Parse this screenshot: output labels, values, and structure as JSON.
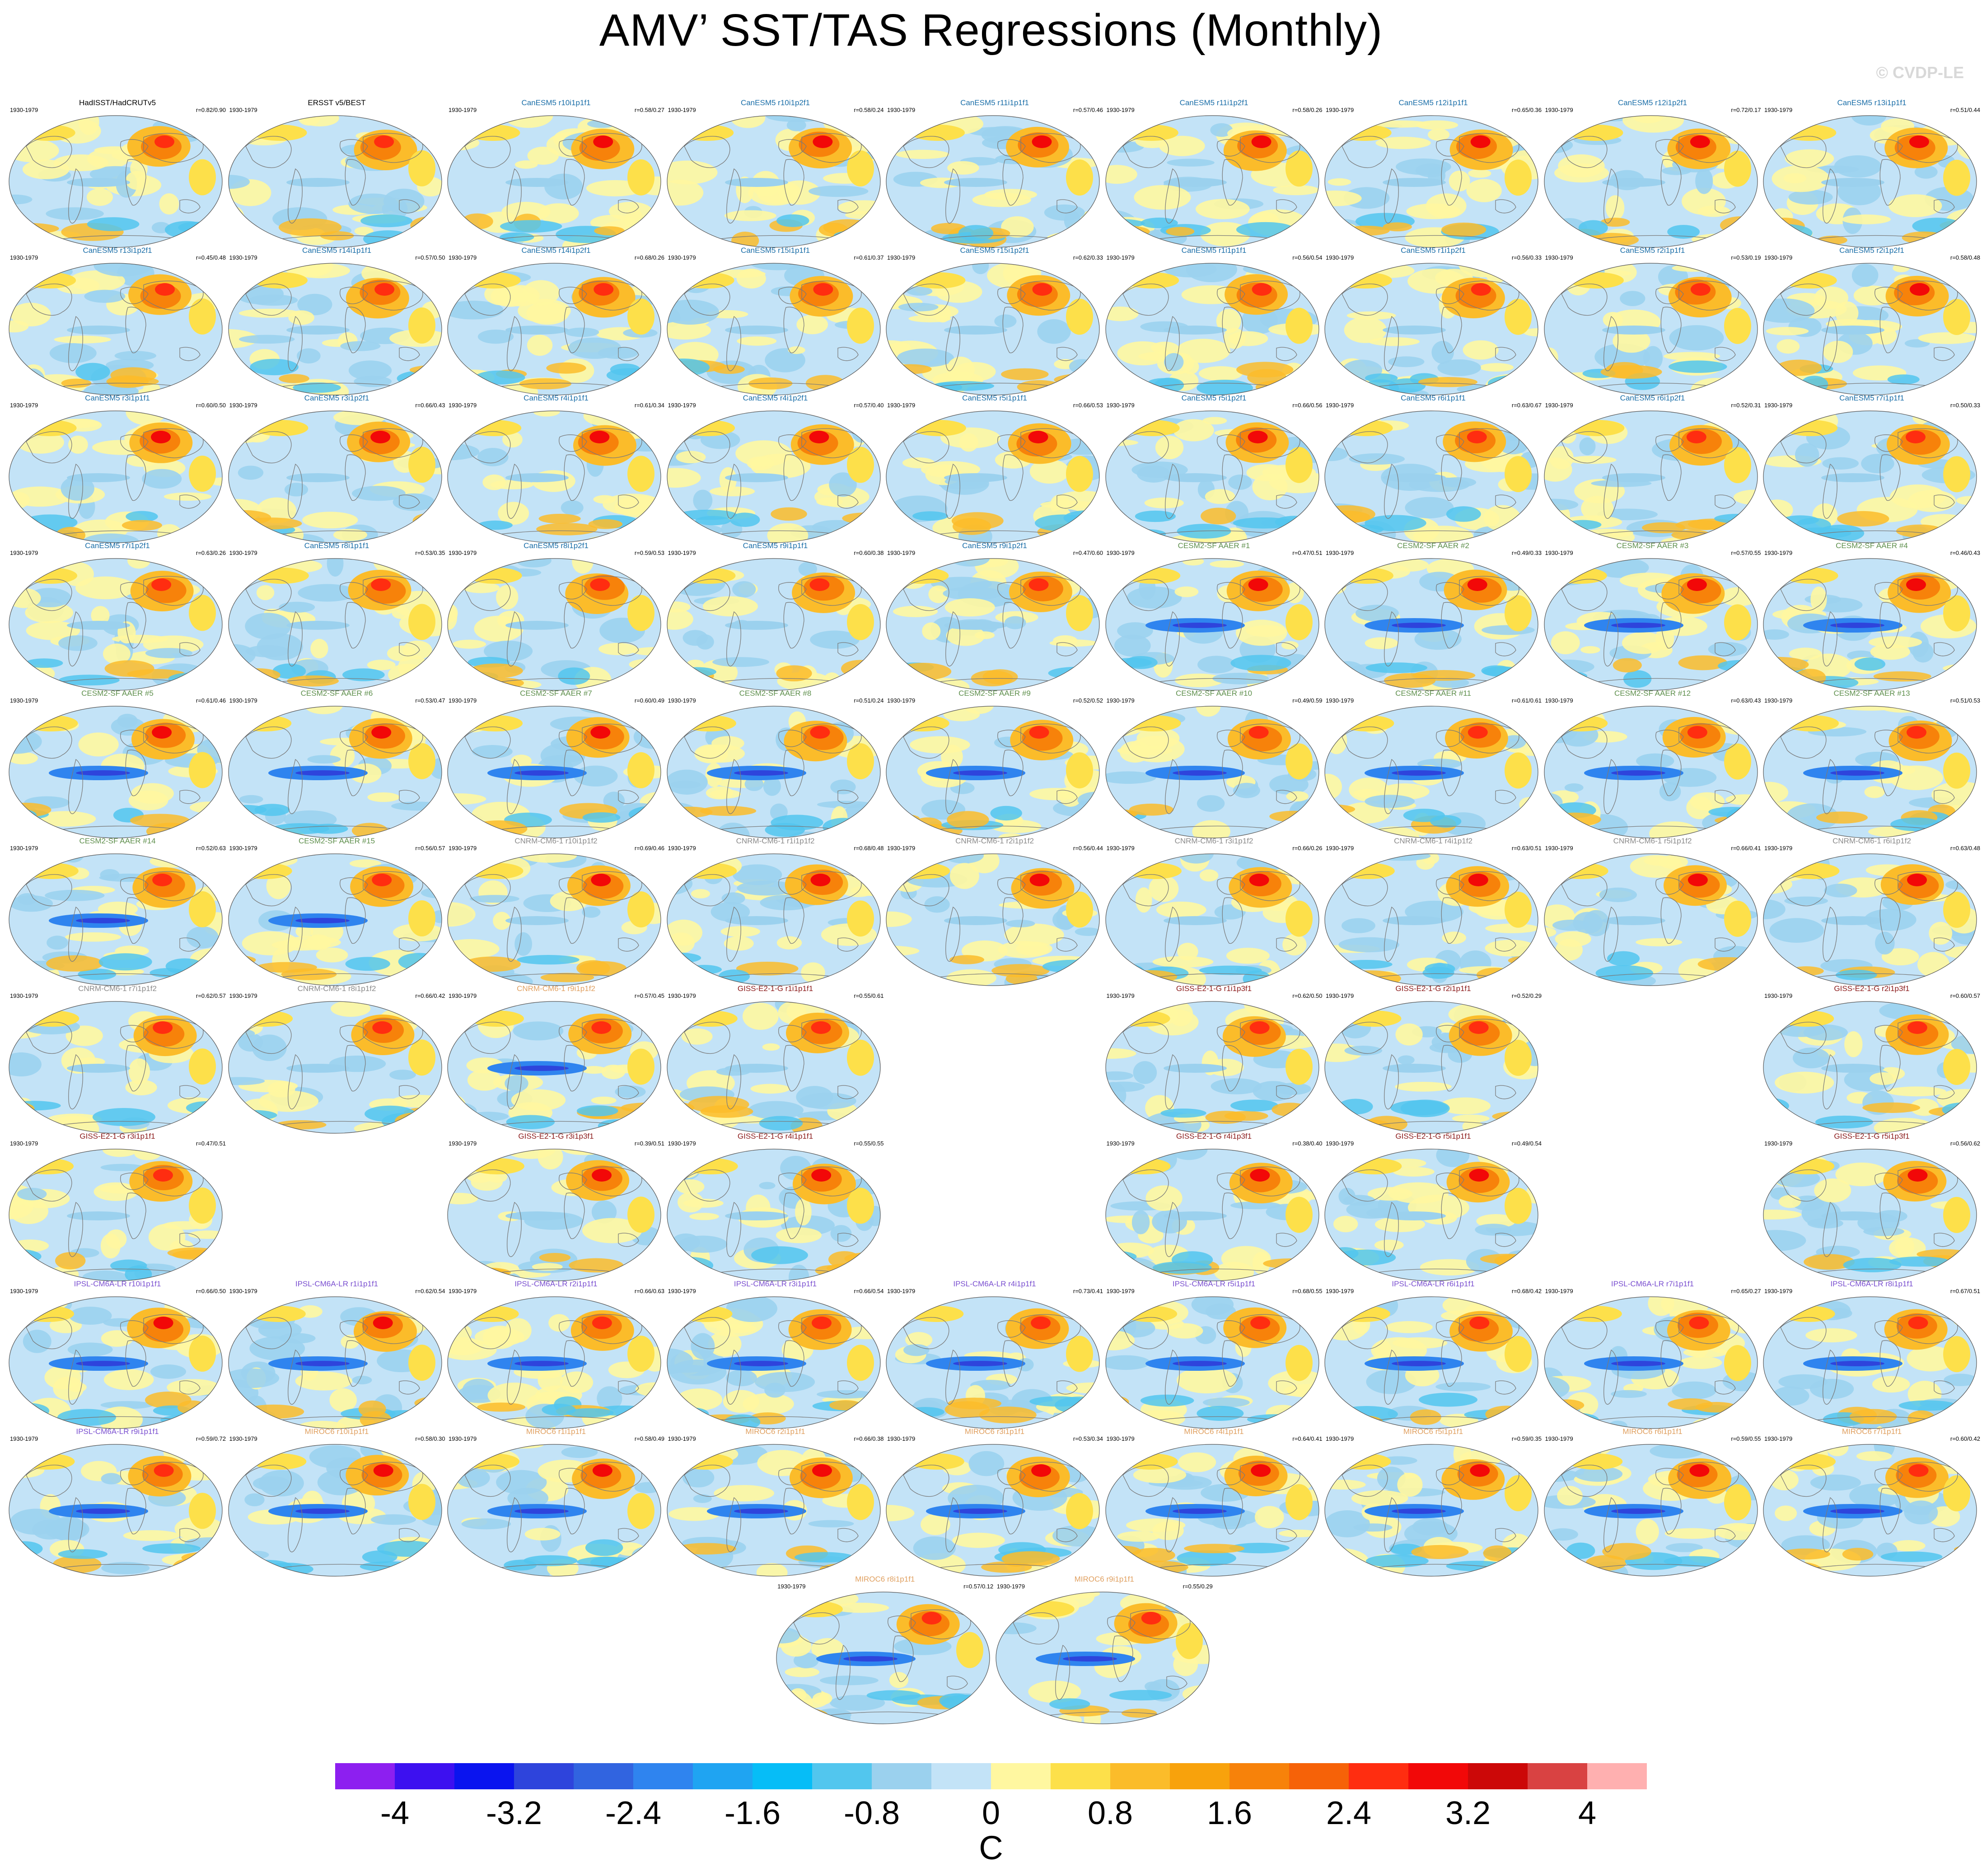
{
  "title": "AMV’ SST/TAS Regressions (Monthly)",
  "watermark": "© CVDP-LE",
  "colors": {
    "canesm5": "#1a6ea8",
    "cesm2": "#5e8f4c",
    "cnrm": "#8a8a8a",
    "giss": "#8b1a1a",
    "ipsl": "#7a4fd0",
    "miroc": "#e0a060",
    "obs": "#000000"
  },
  "colorbar": {
    "unit": "C",
    "tick_labels": [
      "-4",
      "-3.2",
      "-2.4",
      "-1.6",
      "-0.8",
      "0",
      "0.8",
      "1.6",
      "2.4",
      "3.2",
      "4"
    ],
    "colors": [
      "#8d1ff0",
      "#3d10f0",
      "#0a14ef",
      "#2e44dc",
      "#3164e0",
      "#2f84ef",
      "#1fa4f2",
      "#06bdf7",
      "#52c6ee",
      "#9bd1ee",
      "#c3e3f7",
      "#fff7a0",
      "#fde04a",
      "#fbbc2a",
      "#f8a20c",
      "#f7820a",
      "#f66208",
      "#ff2d10",
      "#f20808",
      "#cc0808",
      "#d94242",
      "#ffb0b0"
    ]
  },
  "chart_data": {
    "type": "heatmap",
    "title": "AMV’ SST/TAS Regressions (Monthly)",
    "colorbar_label": "C",
    "colorbar_range": [
      -4,
      4
    ],
    "panels": [
      {
        "row": 0,
        "col": 0,
        "title": "HadISST/HadCRUTv5",
        "group": "obs",
        "period": "1930-1979",
        "corr": "r=0.82/0.90"
      },
      {
        "row": 0,
        "col": 1,
        "title": "ERSST v5/BEST",
        "group": "obs",
        "period": "1930-1979",
        "corr": ""
      },
      {
        "row": 0,
        "col": 2,
        "title": "CanESM5 r10i1p1f1",
        "group": "canesm5",
        "period": "1930-1979",
        "corr": "r=0.58/0.27"
      },
      {
        "row": 0,
        "col": 3,
        "title": "CanESM5 r10i1p2f1",
        "group": "canesm5",
        "period": "1930-1979",
        "corr": "r=0.58/0.24"
      },
      {
        "row": 0,
        "col": 4,
        "title": "CanESM5 r11i1p1f1",
        "group": "canesm5",
        "period": "1930-1979",
        "corr": "r=0.57/0.46"
      },
      {
        "row": 0,
        "col": 5,
        "title": "CanESM5 r11i1p2f1",
        "group": "canesm5",
        "period": "1930-1979",
        "corr": "r=0.58/0.26"
      },
      {
        "row": 0,
        "col": 6,
        "title": "CanESM5 r12i1p1f1",
        "group": "canesm5",
        "period": "1930-1979",
        "corr": "r=0.65/0.36"
      },
      {
        "row": 0,
        "col": 7,
        "title": "CanESM5 r12i1p2f1",
        "group": "canesm5",
        "period": "1930-1979",
        "corr": "r=0.72/0.17"
      },
      {
        "row": 0,
        "col": 8,
        "title": "CanESM5 r13i1p1f1",
        "group": "canesm5",
        "period": "1930-1979",
        "corr": "r=0.51/0.44"
      },
      {
        "row": 1,
        "col": 0,
        "title": "CanESM5 r13i1p2f1",
        "group": "canesm5",
        "period": "1930-1979",
        "corr": "r=0.45/0.48"
      },
      {
        "row": 1,
        "col": 1,
        "title": "CanESM5 r14i1p1f1",
        "group": "canesm5",
        "period": "1930-1979",
        "corr": "r=0.57/0.50"
      },
      {
        "row": 1,
        "col": 2,
        "title": "CanESM5 r14i1p2f1",
        "group": "canesm5",
        "period": "1930-1979",
        "corr": "r=0.68/0.26"
      },
      {
        "row": 1,
        "col": 3,
        "title": "CanESM5 r15i1p1f1",
        "group": "canesm5",
        "period": "1930-1979",
        "corr": "r=0.61/0.37"
      },
      {
        "row": 1,
        "col": 4,
        "title": "CanESM5 r15i1p2f1",
        "group": "canesm5",
        "period": "1930-1979",
        "corr": "r=0.62/0.33"
      },
      {
        "row": 1,
        "col": 5,
        "title": "CanESM5 r1i1p1f1",
        "group": "canesm5",
        "period": "1930-1979",
        "corr": "r=0.56/0.54"
      },
      {
        "row": 1,
        "col": 6,
        "title": "CanESM5 r1i1p2f1",
        "group": "canesm5",
        "period": "1930-1979",
        "corr": "r=0.56/0.33"
      },
      {
        "row": 1,
        "col": 7,
        "title": "CanESM5 r2i1p1f1",
        "group": "canesm5",
        "period": "1930-1979",
        "corr": "r=0.53/0.19"
      },
      {
        "row": 1,
        "col": 8,
        "title": "CanESM5 r2i1p2f1",
        "group": "canesm5",
        "period": "1930-1979",
        "corr": "r=0.58/0.48"
      },
      {
        "row": 2,
        "col": 0,
        "title": "CanESM5 r3i1p1f1",
        "group": "canesm5",
        "period": "1930-1979",
        "corr": "r=0.60/0.50"
      },
      {
        "row": 2,
        "col": 1,
        "title": "CanESM5 r3i1p2f1",
        "group": "canesm5",
        "period": "1930-1979",
        "corr": "r=0.66/0.43"
      },
      {
        "row": 2,
        "col": 2,
        "title": "CanESM5 r4i1p1f1",
        "group": "canesm5",
        "period": "1930-1979",
        "corr": "r=0.61/0.34"
      },
      {
        "row": 2,
        "col": 3,
        "title": "CanESM5 r4i1p2f1",
        "group": "canesm5",
        "period": "1930-1979",
        "corr": "r=0.57/0.40"
      },
      {
        "row": 2,
        "col": 4,
        "title": "CanESM5 r5i1p1f1",
        "group": "canesm5",
        "period": "1930-1979",
        "corr": "r=0.66/0.53"
      },
      {
        "row": 2,
        "col": 5,
        "title": "CanESM5 r5i1p2f1",
        "group": "canesm5",
        "period": "1930-1979",
        "corr": "r=0.66/0.56"
      },
      {
        "row": 2,
        "col": 6,
        "title": "CanESM5 r6i1p1f1",
        "group": "canesm5",
        "period": "1930-1979",
        "corr": "r=0.63/0.67"
      },
      {
        "row": 2,
        "col": 7,
        "title": "CanESM5 r6i1p2f1",
        "group": "canesm5",
        "period": "1930-1979",
        "corr": "r=0.52/0.31"
      },
      {
        "row": 2,
        "col": 8,
        "title": "CanESM5 r7i1p1f1",
        "group": "canesm5",
        "period": "1930-1979",
        "corr": "r=0.50/0.33"
      },
      {
        "row": 3,
        "col": 0,
        "title": "CanESM5 r7i1p2f1",
        "group": "canesm5",
        "period": "1930-1979",
        "corr": "r=0.63/0.26"
      },
      {
        "row": 3,
        "col": 1,
        "title": "CanESM5 r8i1p1f1",
        "group": "canesm5",
        "period": "1930-1979",
        "corr": "r=0.53/0.35"
      },
      {
        "row": 3,
        "col": 2,
        "title": "CanESM5 r8i1p2f1",
        "group": "canesm5",
        "period": "1930-1979",
        "corr": "r=0.59/0.53"
      },
      {
        "row": 3,
        "col": 3,
        "title": "CanESM5 r9i1p1f1",
        "group": "canesm5",
        "period": "1930-1979",
        "corr": "r=0.60/0.38"
      },
      {
        "row": 3,
        "col": 4,
        "title": "CanESM5 r9i1p2f1",
        "group": "canesm5",
        "period": "1930-1979",
        "corr": "r=0.47/0.60"
      },
      {
        "row": 3,
        "col": 5,
        "title": "CESM2-SF AAER #1",
        "group": "cesm2",
        "period": "1930-1979",
        "corr": "r=0.47/0.51"
      },
      {
        "row": 3,
        "col": 6,
        "title": "CESM2-SF AAER #2",
        "group": "cesm2",
        "period": "1930-1979",
        "corr": "r=0.49/0.33"
      },
      {
        "row": 3,
        "col": 7,
        "title": "CESM2-SF AAER #3",
        "group": "cesm2",
        "period": "1930-1979",
        "corr": "r=0.57/0.55"
      },
      {
        "row": 3,
        "col": 8,
        "title": "CESM2-SF AAER #4",
        "group": "cesm2",
        "period": "1930-1979",
        "corr": "r=0.46/0.43"
      },
      {
        "row": 4,
        "col": 0,
        "title": "CESM2-SF AAER #5",
        "group": "cesm2",
        "period": "1930-1979",
        "corr": "r=0.61/0.46"
      },
      {
        "row": 4,
        "col": 1,
        "title": "CESM2-SF AAER #6",
        "group": "cesm2",
        "period": "1930-1979",
        "corr": "r=0.53/0.47"
      },
      {
        "row": 4,
        "col": 2,
        "title": "CESM2-SF AAER #7",
        "group": "cesm2",
        "period": "1930-1979",
        "corr": "r=0.60/0.49"
      },
      {
        "row": 4,
        "col": 3,
        "title": "CESM2-SF AAER #8",
        "group": "cesm2",
        "period": "1930-1979",
        "corr": "r=0.51/0.24"
      },
      {
        "row": 4,
        "col": 4,
        "title": "CESM2-SF AAER #9",
        "group": "cesm2",
        "period": "1930-1979",
        "corr": "r=0.52/0.52"
      },
      {
        "row": 4,
        "col": 5,
        "title": "CESM2-SF AAER #10",
        "group": "cesm2",
        "period": "1930-1979",
        "corr": "r=0.49/0.59"
      },
      {
        "row": 4,
        "col": 6,
        "title": "CESM2-SF AAER #11",
        "group": "cesm2",
        "period": "1930-1979",
        "corr": "r=0.61/0.61"
      },
      {
        "row": 4,
        "col": 7,
        "title": "CESM2-SF AAER #12",
        "group": "cesm2",
        "period": "1930-1979",
        "corr": "r=0.63/0.43"
      },
      {
        "row": 4,
        "col": 8,
        "title": "CESM2-SF AAER #13",
        "group": "cesm2",
        "period": "1930-1979",
        "corr": "r=0.51/0.53"
      },
      {
        "row": 5,
        "col": 0,
        "title": "CESM2-SF AAER #14",
        "group": "cesm2",
        "period": "1930-1979",
        "corr": "r=0.52/0.63"
      },
      {
        "row": 5,
        "col": 1,
        "title": "CESM2-SF AAER #15",
        "group": "cesm2",
        "period": "1930-1979",
        "corr": "r=0.56/0.57"
      },
      {
        "row": 5,
        "col": 2,
        "title": "CNRM-CM6-1 r10i1p1f2",
        "group": "cnrm",
        "period": "1930-1979",
        "corr": "r=0.69/0.46"
      },
      {
        "row": 5,
        "col": 3,
        "title": "CNRM-CM6-1 r1i1p1f2",
        "group": "cnrm",
        "period": "1930-1979",
        "corr": "r=0.68/0.48"
      },
      {
        "row": 5,
        "col": 4,
        "title": "CNRM-CM6-1 r2i1p1f2",
        "group": "cnrm",
        "period": "1930-1979",
        "corr": "r=0.56/0.44"
      },
      {
        "row": 5,
        "col": 5,
        "title": "CNRM-CM6-1 r3i1p1f2",
        "group": "cnrm",
        "period": "1930-1979",
        "corr": "r=0.66/0.26"
      },
      {
        "row": 5,
        "col": 6,
        "title": "CNRM-CM6-1 r4i1p1f2",
        "group": "cnrm",
        "period": "1930-1979",
        "corr": "r=0.63/0.51"
      },
      {
        "row": 5,
        "col": 7,
        "title": "CNRM-CM6-1 r5i1p1f2",
        "group": "cnrm",
        "period": "1930-1979",
        "corr": "r=0.66/0.41"
      },
      {
        "row": 5,
        "col": 8,
        "title": "CNRM-CM6-1 r6i1p1f2",
        "group": "cnrm",
        "period": "1930-1979",
        "corr": "r=0.63/0.48"
      },
      {
        "row": 6,
        "col": 0,
        "title": "CNRM-CM6-1 r7i1p1f2",
        "group": "cnrm",
        "period": "1930-1979",
        "corr": "r=0.62/0.57"
      },
      {
        "row": 6,
        "col": 1,
        "title": "CNRM-CM6-1 r8i1p1f2",
        "group": "cnrm",
        "period": "1930-1979",
        "corr": "r=0.66/0.42"
      },
      {
        "row": 6,
        "col": 2,
        "title": "CNRM-CM6-1 r9i1p1f2",
        "group": "miroc",
        "period": "1930-1979",
        "corr": "r=0.57/0.45"
      },
      {
        "row": 6,
        "col": 3,
        "title": "GISS-E2-1-G r1i1p1f1",
        "group": "giss",
        "period": "1930-1979",
        "corr": "r=0.55/0.61"
      },
      {
        "row": 6,
        "col": 5,
        "title": "GISS-E2-1-G r1i1p3f1",
        "group": "giss",
        "period": "1930-1979",
        "corr": "r=0.62/0.50"
      },
      {
        "row": 6,
        "col": 6,
        "title": "GISS-E2-1-G r2i1p1f1",
        "group": "giss",
        "period": "1930-1979",
        "corr": "r=0.52/0.29"
      },
      {
        "row": 6,
        "col": 8,
        "title": "GISS-E2-1-G r2i1p3f1",
        "group": "giss",
        "period": "1930-1979",
        "corr": "r=0.60/0.57"
      },
      {
        "row": 7,
        "col": 0,
        "title": "GISS-E2-1-G r3i1p1f1",
        "group": "giss",
        "period": "1930-1979",
        "corr": "r=0.47/0.51"
      },
      {
        "row": 7,
        "col": 2,
        "title": "GISS-E2-1-G r3i1p3f1",
        "group": "giss",
        "period": "1930-1979",
        "corr": "r=0.39/0.51"
      },
      {
        "row": 7,
        "col": 3,
        "title": "GISS-E2-1-G r4i1p1f1",
        "group": "giss",
        "period": "1930-1979",
        "corr": "r=0.55/0.55"
      },
      {
        "row": 7,
        "col": 5,
        "title": "GISS-E2-1-G r4i1p3f1",
        "group": "giss",
        "period": "1930-1979",
        "corr": "r=0.38/0.40"
      },
      {
        "row": 7,
        "col": 6,
        "title": "GISS-E2-1-G r5i1p1f1",
        "group": "giss",
        "period": "1930-1979",
        "corr": "r=0.49/0.54"
      },
      {
        "row": 7,
        "col": 8,
        "title": "GISS-E2-1-G r5i1p3f1",
        "group": "giss",
        "period": "1930-1979",
        "corr": "r=0.56/0.62"
      },
      {
        "row": 8,
        "col": 0,
        "title": "IPSL-CM6A-LR r10i1p1f1",
        "group": "ipsl",
        "period": "1930-1979",
        "corr": "r=0.66/0.50"
      },
      {
        "row": 8,
        "col": 1,
        "title": "IPSL-CM6A-LR r1i1p1f1",
        "group": "ipsl",
        "period": "1930-1979",
        "corr": "r=0.62/0.54"
      },
      {
        "row": 8,
        "col": 2,
        "title": "IPSL-CM6A-LR r2i1p1f1",
        "group": "ipsl",
        "period": "1930-1979",
        "corr": "r=0.66/0.63"
      },
      {
        "row": 8,
        "col": 3,
        "title": "IPSL-CM6A-LR r3i1p1f1",
        "group": "ipsl",
        "period": "1930-1979",
        "corr": "r=0.66/0.54"
      },
      {
        "row": 8,
        "col": 4,
        "title": "IPSL-CM6A-LR r4i1p1f1",
        "group": "ipsl",
        "period": "1930-1979",
        "corr": "r=0.73/0.41"
      },
      {
        "row": 8,
        "col": 5,
        "title": "IPSL-CM6A-LR r5i1p1f1",
        "group": "ipsl",
        "period": "1930-1979",
        "corr": "r=0.68/0.55"
      },
      {
        "row": 8,
        "col": 6,
        "title": "IPSL-CM6A-LR r6i1p1f1",
        "group": "ipsl",
        "period": "1930-1979",
        "corr": "r=0.68/0.42"
      },
      {
        "row": 8,
        "col": 7,
        "title": "IPSL-CM6A-LR r7i1p1f1",
        "group": "ipsl",
        "period": "1930-1979",
        "corr": "r=0.65/0.27"
      },
      {
        "row": 8,
        "col": 8,
        "title": "IPSL-CM6A-LR r8i1p1f1",
        "group": "ipsl",
        "period": "1930-1979",
        "corr": "r=0.67/0.51"
      },
      {
        "row": 9,
        "col": 0,
        "title": "IPSL-CM6A-LR r9i1p1f1",
        "group": "ipsl",
        "period": "1930-1979",
        "corr": "r=0.59/0.72"
      },
      {
        "row": 9,
        "col": 1,
        "title": "MIROC6 r10i1p1f1",
        "group": "miroc",
        "period": "1930-1979",
        "corr": "r=0.58/0.30"
      },
      {
        "row": 9,
        "col": 2,
        "title": "MIROC6 r1i1p1f1",
        "group": "miroc",
        "period": "1930-1979",
        "corr": "r=0.58/0.49"
      },
      {
        "row": 9,
        "col": 3,
        "title": "MIROC6 r2i1p1f1",
        "group": "miroc",
        "period": "1930-1979",
        "corr": "r=0.66/0.38"
      },
      {
        "row": 9,
        "col": 4,
        "title": "MIROC6 r3i1p1f1",
        "group": "miroc",
        "period": "1930-1979",
        "corr": "r=0.53/0.34"
      },
      {
        "row": 9,
        "col": 5,
        "title": "MIROC6 r4i1p1f1",
        "group": "miroc",
        "period": "1930-1979",
        "corr": "r=0.64/0.41"
      },
      {
        "row": 9,
        "col": 6,
        "title": "MIROC6 r5i1p1f1",
        "group": "miroc",
        "period": "1930-1979",
        "corr": "r=0.59/0.35"
      },
      {
        "row": 9,
        "col": 7,
        "title": "MIROC6 r6i1p1f1",
        "group": "miroc",
        "period": "1930-1979",
        "corr": "r=0.59/0.55"
      },
      {
        "row": 9,
        "col": 8,
        "title": "MIROC6 r7i1p1f1",
        "group": "miroc",
        "period": "1930-1979",
        "corr": "r=0.60/0.42"
      },
      {
        "row": 10,
        "col": 3.5,
        "title": "MIROC6 r8i1p1f1",
        "group": "miroc",
        "period": "1930-1979",
        "corr": "r=0.57/0.12"
      },
      {
        "row": 10,
        "col": 4.5,
        "title": "MIROC6 r9i1p1f1",
        "group": "miroc",
        "period": "1930-1979",
        "corr": "r=0.55/0.29"
      }
    ]
  }
}
